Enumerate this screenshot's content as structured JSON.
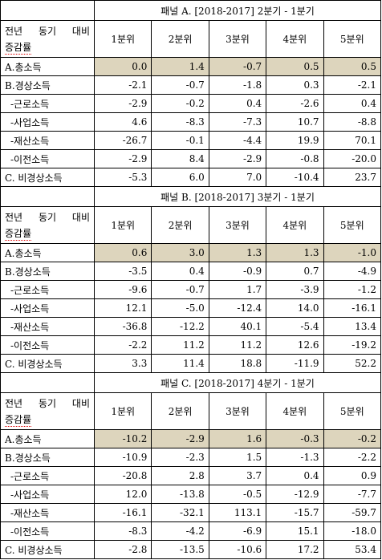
{
  "panels": [
    {
      "title": "패널 A. [2018-2017] 2분기 - 1분기",
      "header_label": [
        "전년 동기 대비",
        "증감률"
      ],
      "columns": [
        "1분위",
        "2분위",
        "3분위",
        "4분위",
        "5분위"
      ],
      "rows": [
        {
          "label": "A.총소득",
          "values": [
            "0.0",
            "1.4",
            "-0.7",
            "0.5",
            "0.5"
          ]
        },
        {
          "label": "B.경상소득",
          "values": [
            "-2.1",
            "-0.7",
            "-1.8",
            "0.3",
            "-2.1"
          ]
        },
        {
          "label": "-근로소득",
          "values": [
            "-2.9",
            "-0.2",
            "0.4",
            "-2.6",
            "0.4"
          ]
        },
        {
          "label": "-사업소득",
          "values": [
            "4.6",
            "-8.3",
            "-7.3",
            "10.7",
            "-8.8"
          ]
        },
        {
          "label": "-재산소득",
          "values": [
            "-26.7",
            "-0.1",
            "-4.4",
            "19.9",
            "70.1"
          ]
        },
        {
          "label": "-이전소득",
          "values": [
            "-2.9",
            "8.4",
            "-2.9",
            "-0.8",
            "-20.0"
          ]
        },
        {
          "label": "C. 비경상소득",
          "values": [
            "-5.3",
            "6.0",
            "7.0",
            "-10.4",
            "23.7"
          ]
        }
      ]
    },
    {
      "title": "패널 B. [2018-2017] 3분기 - 1분기",
      "header_label": [
        "전년 동기 대비",
        "증감률"
      ],
      "columns": [
        "1분위",
        "2분위",
        "3분위",
        "4분위",
        "5분위"
      ],
      "rows": [
        {
          "label": "A.총소득",
          "values": [
            "0.6",
            "3.0",
            "1.3",
            "1.3",
            "-1.0"
          ]
        },
        {
          "label": "B.경상소득",
          "values": [
            "-3.5",
            "0.4",
            "-0.9",
            "0.7",
            "-4.9"
          ]
        },
        {
          "label": "-근로소득",
          "values": [
            "-9.6",
            "-0.7",
            "1.7",
            "-3.9",
            "-1.2"
          ]
        },
        {
          "label": "-사업소득",
          "values": [
            "12.1",
            "-5.0",
            "-12.4",
            "14.0",
            "-16.1"
          ]
        },
        {
          "label": "-재산소득",
          "values": [
            "-36.8",
            "-12.2",
            "40.1",
            "-5.4",
            "13.4"
          ]
        },
        {
          "label": "-이전소득",
          "values": [
            "-2.2",
            "11.2",
            "11.2",
            "12.6",
            "-19.2"
          ]
        },
        {
          "label": "C. 비경상소득",
          "values": [
            "3.3",
            "11.4",
            "18.8",
            "-11.9",
            "52.2"
          ]
        }
      ]
    },
    {
      "title": "패널 C. [2018-2017] 4분기 - 1분기",
      "header_label": [
        "전년 동기 대비",
        "증감률"
      ],
      "columns": [
        "1분위",
        "2분위",
        "3분위",
        "4분위",
        "5분위"
      ],
      "rows": [
        {
          "label": "A.총소득",
          "values": [
            "-10.2",
            "-2.9",
            "1.6",
            "-0.3",
            "-0.2"
          ]
        },
        {
          "label": "B.경상소득",
          "values": [
            "-10.9",
            "-2.3",
            "1.5",
            "-1.3",
            "-2.2"
          ]
        },
        {
          "label": "-근로소득",
          "values": [
            "-20.8",
            "2.8",
            "3.7",
            "0.4",
            "0.9"
          ]
        },
        {
          "label": "-사업소득",
          "values": [
            "12.0",
            "-13.8",
            "-0.5",
            "-12.9",
            "-7.7"
          ]
        },
        {
          "label": "-재산소득",
          "values": [
            "-16.1",
            "-32.1",
            "113.1",
            "-15.7",
            "-59.7"
          ]
        },
        {
          "label": "-이전소득",
          "values": [
            "-8.3",
            "-4.2",
            "-6.9",
            "15.1",
            "-18.0"
          ]
        },
        {
          "label": "C. 비경상소득",
          "values": [
            "-2.8",
            "-13.5",
            "-10.6",
            "17.2",
            "53.4"
          ]
        }
      ]
    }
  ]
}
